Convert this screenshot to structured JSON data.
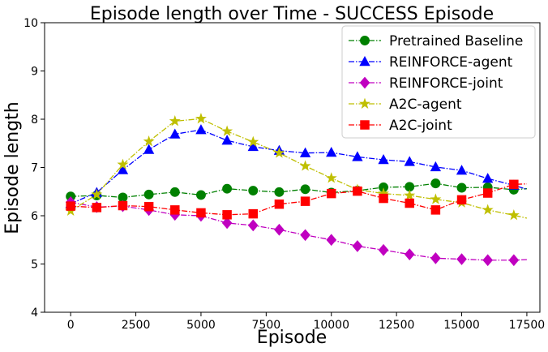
{
  "chart_data": {
    "type": "line",
    "title": "Episode length over Time - SUCCESS Episode",
    "xlabel": "Episode",
    "ylabel": "Episode length",
    "xlim": [
      -1000,
      18000
    ],
    "ylim": [
      4,
      10
    ],
    "xticks": [
      0,
      2500,
      5000,
      7500,
      10000,
      12500,
      15000,
      17500
    ],
    "xtick_labels": [
      "0",
      "2500",
      "5000",
      "7500",
      "10000",
      "12500",
      "15000",
      "17500"
    ],
    "yticks": [
      4,
      5,
      6,
      7,
      8,
      9,
      10
    ],
    "ytick_labels": [
      "4",
      "5",
      "6",
      "7",
      "8",
      "9",
      "10"
    ],
    "grid": false,
    "legend_position": "top-right",
    "x": [
      0,
      1000,
      2000,
      3000,
      4000,
      5000,
      6000,
      7000,
      8000,
      9000,
      10000,
      11000,
      12000,
      13000,
      14000,
      15000,
      16000,
      17000
    ],
    "series": [
      {
        "name": "Pretrained Baseline",
        "color": "#008000",
        "marker": "circle",
        "values": [
          6.4,
          6.42,
          6.38,
          6.44,
          6.49,
          6.43,
          6.56,
          6.52,
          6.49,
          6.55,
          6.48,
          6.52,
          6.59,
          6.6,
          6.67,
          6.58,
          6.59,
          6.54
        ],
        "tail": [
          17500,
          6.56
        ]
      },
      {
        "name": "REINFORCE-agent",
        "color": "#0000ff",
        "marker": "triangle",
        "values": [
          6.25,
          6.48,
          6.95,
          7.37,
          7.69,
          7.78,
          7.56,
          7.43,
          7.35,
          7.3,
          7.31,
          7.22,
          7.16,
          7.12,
          7.01,
          6.94,
          6.77,
          6.63
        ],
        "tail": [
          17500,
          6.55
        ]
      },
      {
        "name": "REINFORCE-joint",
        "color": "#c000c0",
        "marker": "diamond",
        "values": [
          6.28,
          6.18,
          6.2,
          6.12,
          6.02,
          6.0,
          5.85,
          5.8,
          5.71,
          5.6,
          5.5,
          5.37,
          5.29,
          5.2,
          5.12,
          5.1,
          5.08,
          5.08
        ],
        "tail": [
          17500,
          5.09
        ]
      },
      {
        "name": "A2C-agent",
        "color": "#bfbf00",
        "marker": "star",
        "values": [
          6.1,
          6.44,
          7.06,
          7.54,
          7.96,
          8.01,
          7.75,
          7.53,
          7.3,
          7.03,
          6.78,
          6.54,
          6.46,
          6.42,
          6.34,
          6.27,
          6.12,
          6.01
        ],
        "tail": [
          17500,
          5.95
        ]
      },
      {
        "name": "A2C-joint",
        "color": "#ff0000",
        "marker": "square",
        "values": [
          6.2,
          6.17,
          6.21,
          6.19,
          6.12,
          6.06,
          6.02,
          6.04,
          6.24,
          6.3,
          6.46,
          6.51,
          6.36,
          6.26,
          6.12,
          6.33,
          6.47,
          6.65
        ],
        "tail": [
          17500,
          6.66
        ]
      }
    ]
  }
}
